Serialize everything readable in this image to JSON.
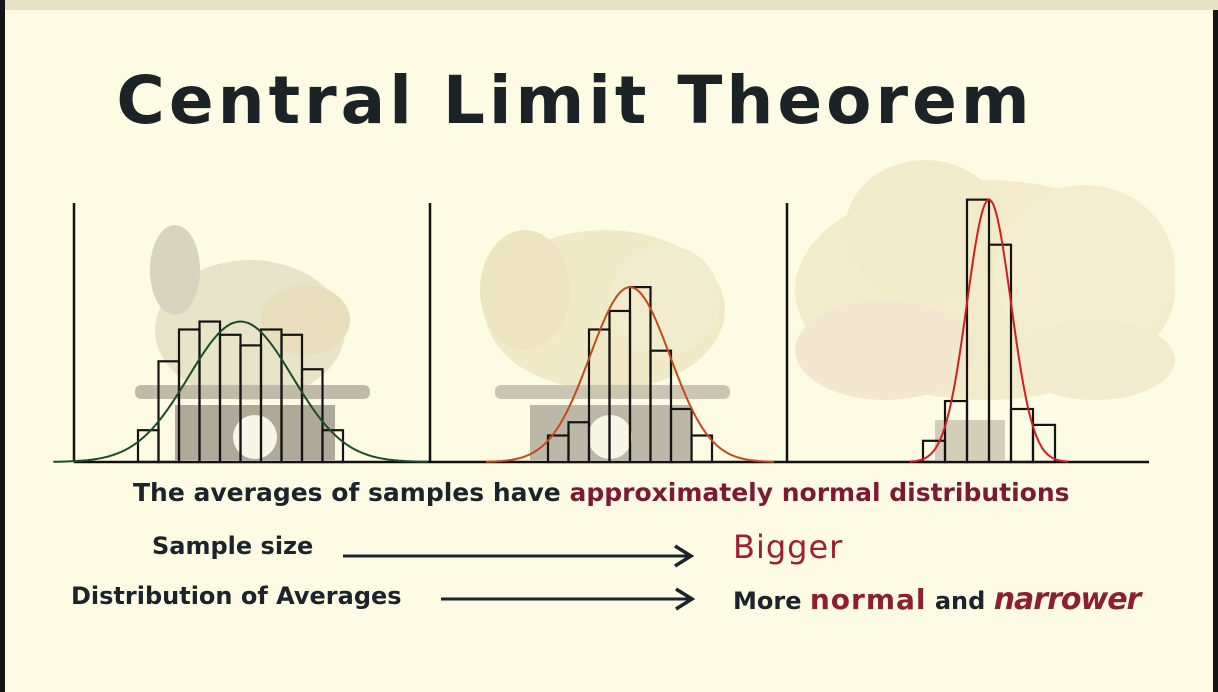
{
  "title": "Central Limit Theorem",
  "statement": {
    "before": "The averages of samples have",
    "highlight": "approximately",
    "after": "normal distributions"
  },
  "rows": [
    {
      "label": "Sample size",
      "result": "Bigger"
    },
    {
      "label": "Distribution of Averages",
      "result_prefix": "More",
      "result_word1": "normal",
      "result_mid": "and",
      "result_word2": "narrower"
    }
  ],
  "colors": {
    "background": "#fdfbe4",
    "ink": "#1c232a",
    "accent": "#8d1f2e",
    "curve_small": "#1f4a2c",
    "curve_medium": "#c24a1c",
    "curve_large": "#d11f1f"
  },
  "chart_data": [
    {
      "type": "bar",
      "series": [
        {
          "values": [
            0.12,
            0.38,
            0.5,
            0.53,
            0.48,
            0.44,
            0.5,
            0.48,
            0.35,
            0.12
          ]
        }
      ],
      "overlay": "normal curve",
      "ylim": [
        0,
        1
      ],
      "curve_color": "#1f4a2c"
    },
    {
      "type": "bar",
      "series": [
        {
          "values": [
            0.1,
            0.15,
            0.5,
            0.57,
            0.66,
            0.42,
            0.2,
            0.1
          ]
        }
      ],
      "overlay": "normal curve",
      "ylim": [
        0,
        1
      ],
      "curve_color": "#c24a1c"
    },
    {
      "type": "bar",
      "series": [
        {
          "values": [
            0.08,
            0.23,
            0.99,
            0.82,
            0.2,
            0.14
          ]
        }
      ],
      "overlay": "normal curve",
      "ylim": [
        0,
        1
      ],
      "curve_color": "#d11f1f"
    }
  ]
}
